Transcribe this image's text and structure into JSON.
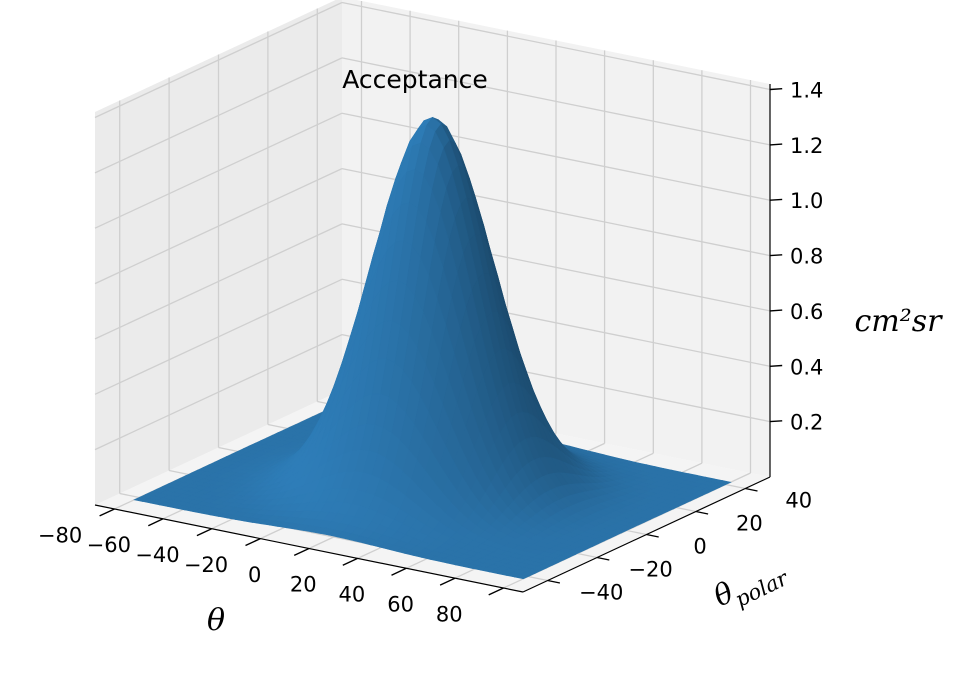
{
  "chart_data": {
    "type": "surface3d",
    "title": "Acceptance",
    "xlabel": "θ",
    "ylabel": "θ",
    "ylabel_subscript": "polar",
    "zlabel": "cm²sr",
    "x_ticks": [
      "−80",
      "−60",
      "−40",
      "−20",
      "0",
      "20",
      "40",
      "60",
      "80"
    ],
    "y_ticks": [
      "−40",
      "−20",
      "0",
      "20",
      "40"
    ],
    "z_ticks": [
      "0.2",
      "0.4",
      "0.6",
      "0.8",
      "1.0",
      "1.2",
      "1.4"
    ],
    "x_range": [
      -88,
      88
    ],
    "y_range": [
      -50,
      50
    ],
    "z_range": [
      0,
      1.42
    ],
    "surface": {
      "peak_value": 1.35,
      "peak_x": 0,
      "peak_y": 0,
      "sigma_x": 21,
      "sigma_y": 14,
      "x_extent": [
        -80,
        80
      ],
      "y_extent": [
        -42,
        42
      ]
    },
    "surface_color": "#2E7DB8",
    "pane_color": "#F2F2F2",
    "grid": true
  }
}
